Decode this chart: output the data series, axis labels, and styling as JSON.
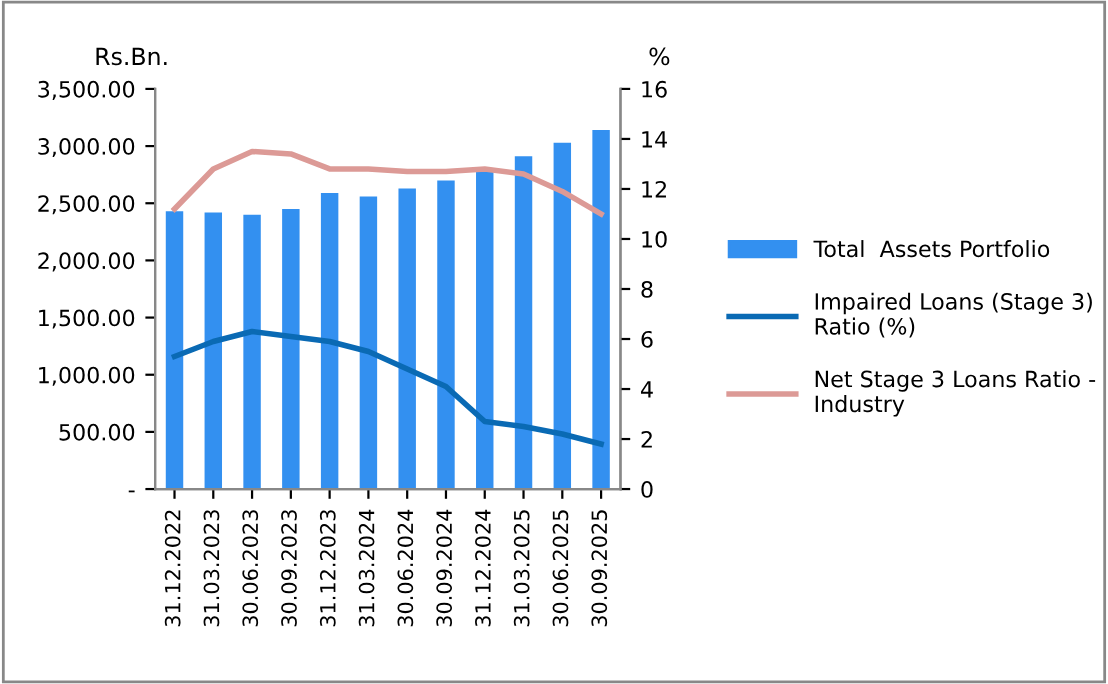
{
  "chart_data": {
    "type": "bar",
    "ylabel": "Rs.Bn.",
    "y2label": "%",
    "categories": [
      "31.12.2022",
      "31.03.2023",
      "30.06.2023",
      "30.09.2023",
      "31.12.2023",
      "31.03.2024",
      "30.06.2024",
      "30.09.2024",
      "31.12.2024",
      "31.03.2025",
      "30.06.2025",
      "30.09.2025"
    ],
    "series": [
      {
        "name": "Total  Assets Portfolio",
        "color": "#3390f0",
        "values": [
          2430,
          2420,
          2400,
          2450,
          2590,
          2560,
          2630,
          2700,
          2790,
          2910,
          3030,
          3140
        ]
      },
      {
        "name": "Impaired Loans (Stage 3) Ratio (%)",
        "type": "line",
        "axis": "y2",
        "color": "#0a6ab4",
        "values": [
          5.3,
          5.9,
          6.3,
          6.1,
          5.9,
          5.5,
          4.8,
          4.1,
          2.7,
          2.5,
          2.2,
          1.8
        ]
      },
      {
        "name": "Net Stage 3 Loans Ratio - Industry",
        "type": "line",
        "axis": "y2",
        "color": "#dc9a96",
        "values": [
          11.2,
          12.8,
          13.5,
          13.4,
          12.8,
          12.8,
          12.7,
          12.7,
          12.8,
          12.6,
          11.9,
          11.0
        ]
      }
    ],
    "ylim": [
      0,
      3500
    ],
    "yticks": [
      {
        "value": 0,
        "label": "-"
      },
      {
        "value": 500,
        "label": "500.00"
      },
      {
        "value": 1000,
        "label": "1,000.00"
      },
      {
        "value": 1500,
        "label": "1,500.00"
      },
      {
        "value": 2000,
        "label": "2,000.00"
      },
      {
        "value": 2500,
        "label": "2,500.00"
      },
      {
        "value": 3000,
        "label": "3,000.00"
      },
      {
        "value": 3500,
        "label": "3,500.00"
      }
    ],
    "y2lim": [
      0,
      16
    ],
    "y2ticks": [
      0,
      2,
      4,
      6,
      8,
      10,
      12,
      14,
      16
    ],
    "grid": false,
    "legend": "right"
  }
}
